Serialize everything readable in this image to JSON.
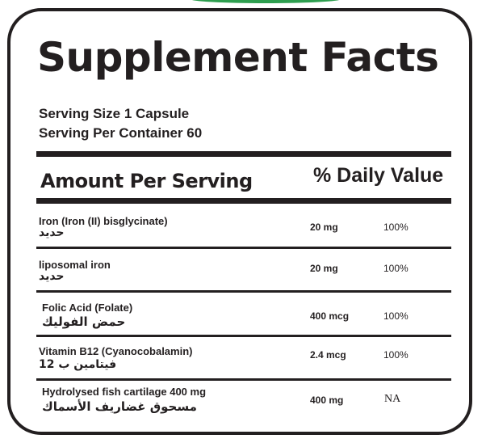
{
  "label": {
    "title": "Supplement Facts",
    "serving_size": "Serving Size 1 Capsule",
    "servings_per_container": "Serving Per Container 60",
    "header_amount": "Amount Per Serving",
    "header_daily_value": "% Daily Value"
  },
  "colors": {
    "text": "#231f20",
    "border": "#231f20",
    "accent_arc": "#2e9e4f"
  },
  "nutrients": [
    {
      "name": "Iron (Iron (II) bisglycinate)",
      "name_ar": "حديد",
      "amount": "20 mg",
      "daily_value": "100%"
    },
    {
      "name": "liposomal iron",
      "name_ar": "حديد",
      "amount": "20  mg",
      "daily_value": "100%"
    },
    {
      "name": "Folic Acid (Folate)",
      "name_ar": "حمض الفوليك",
      "amount": "400 mcg",
      "daily_value": "100%"
    },
    {
      "name": "Vitamin B12 (Cyanocobalamin)",
      "name_ar": "فيتامين ب 12",
      "amount": "2.4  mcg",
      "daily_value": "100%"
    },
    {
      "name": "Hydrolysed fish cartilage 400 mg",
      "name_ar": "مسحوق غضاريف الأسماك",
      "amount": "400 mg",
      "daily_value": "NA"
    }
  ]
}
